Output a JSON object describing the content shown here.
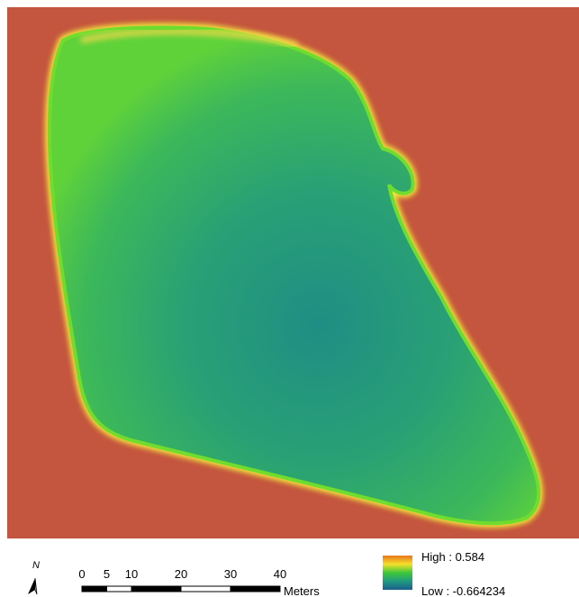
{
  "north_label": "N",
  "scale_bar": {
    "ticks": [
      0,
      5,
      10,
      20,
      30,
      40
    ],
    "unit": "Meters"
  },
  "legend": {
    "high": "High : 0.584",
    "low": "Low : -0.664234"
  }
}
